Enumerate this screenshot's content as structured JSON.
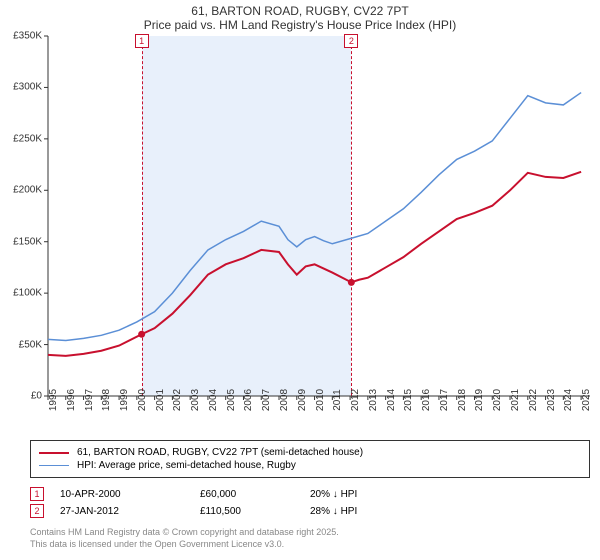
{
  "header": {
    "title": "61, BARTON ROAD, RUGBY, CV22 7PT",
    "subtitle": "Price paid vs. HM Land Registry's House Price Index (HPI)"
  },
  "chart": {
    "type": "line",
    "background_color": "#ffffff",
    "axis_color": "#333333",
    "shaded_color": "#e8f0fb",
    "shaded_range": [
      2000.27,
      2012.07
    ],
    "x_years": [
      1995,
      1996,
      1997,
      1998,
      1999,
      2000,
      2001,
      2002,
      2003,
      2004,
      2005,
      2006,
      2007,
      2008,
      2009,
      2010,
      2011,
      2012,
      2013,
      2014,
      2015,
      2016,
      2017,
      2018,
      2019,
      2020,
      2021,
      2022,
      2023,
      2024,
      2025
    ],
    "xlim": [
      1995,
      2025.5
    ],
    "y_ticks": [
      0,
      50000,
      100000,
      150000,
      200000,
      250000,
      300000,
      350000
    ],
    "y_tick_labels": [
      "£0",
      "£50K",
      "£100K",
      "£150K",
      "£200K",
      "£250K",
      "£300K",
      "£350K"
    ],
    "ylim": [
      0,
      350000
    ],
    "tick_fontsize": 10,
    "series": [
      {
        "name": "property",
        "label": "61, BARTON ROAD, RUGBY, CV22 7PT (semi-detached house)",
        "color": "#c8102e",
        "line_width": 2,
        "points": [
          [
            1995,
            40000
          ],
          [
            1996,
            39000
          ],
          [
            1997,
            41000
          ],
          [
            1998,
            44000
          ],
          [
            1999,
            49000
          ],
          [
            2000.27,
            60000
          ],
          [
            2001,
            66000
          ],
          [
            2002,
            80000
          ],
          [
            2003,
            98000
          ],
          [
            2004,
            118000
          ],
          [
            2005,
            128000
          ],
          [
            2006,
            134000
          ],
          [
            2007,
            142000
          ],
          [
            2008,
            140000
          ],
          [
            2008.5,
            128000
          ],
          [
            2009,
            118000
          ],
          [
            2009.5,
            126000
          ],
          [
            2010,
            128000
          ],
          [
            2010.5,
            124000
          ],
          [
            2011,
            120000
          ],
          [
            2012.07,
            110500
          ],
          [
            2012.5,
            113000
          ],
          [
            2013,
            115000
          ],
          [
            2014,
            125000
          ],
          [
            2015,
            135000
          ],
          [
            2016,
            148000
          ],
          [
            2017,
            160000
          ],
          [
            2018,
            172000
          ],
          [
            2019,
            178000
          ],
          [
            2020,
            185000
          ],
          [
            2021,
            200000
          ],
          [
            2022,
            217000
          ],
          [
            2023,
            213000
          ],
          [
            2024,
            212000
          ],
          [
            2025,
            218000
          ]
        ]
      },
      {
        "name": "hpi",
        "label": "HPI: Average price, semi-detached house, Rugby",
        "color": "#5b8fd6",
        "line_width": 1.5,
        "points": [
          [
            1995,
            55000
          ],
          [
            1996,
            54000
          ],
          [
            1997,
            56000
          ],
          [
            1998,
            59000
          ],
          [
            1999,
            64000
          ],
          [
            2000,
            72000
          ],
          [
            2001,
            82000
          ],
          [
            2002,
            100000
          ],
          [
            2003,
            122000
          ],
          [
            2004,
            142000
          ],
          [
            2005,
            152000
          ],
          [
            2006,
            160000
          ],
          [
            2007,
            170000
          ],
          [
            2008,
            165000
          ],
          [
            2008.5,
            152000
          ],
          [
            2009,
            145000
          ],
          [
            2009.5,
            152000
          ],
          [
            2010,
            155000
          ],
          [
            2010.5,
            151000
          ],
          [
            2011,
            148000
          ],
          [
            2012,
            153000
          ],
          [
            2013,
            158000
          ],
          [
            2014,
            170000
          ],
          [
            2015,
            182000
          ],
          [
            2016,
            198000
          ],
          [
            2017,
            215000
          ],
          [
            2018,
            230000
          ],
          [
            2019,
            238000
          ],
          [
            2020,
            248000
          ],
          [
            2021,
            270000
          ],
          [
            2022,
            292000
          ],
          [
            2023,
            285000
          ],
          [
            2024,
            283000
          ],
          [
            2025,
            295000
          ]
        ]
      }
    ],
    "sale_markers": [
      {
        "n": "1",
        "x": 2000.27,
        "y_pos": "top",
        "color": "#c8102e"
      },
      {
        "n": "2",
        "x": 2012.07,
        "y_pos": "top",
        "color": "#c8102e"
      }
    ],
    "sale_points": [
      {
        "x": 2000.27,
        "y": 60000,
        "color": "#c8102e"
      },
      {
        "x": 2012.07,
        "y": 110500,
        "color": "#c8102e"
      }
    ]
  },
  "legend": {
    "items": [
      {
        "color": "#c8102e",
        "width": 2,
        "label": "61, BARTON ROAD, RUGBY, CV22 7PT (semi-detached house)"
      },
      {
        "color": "#5b8fd6",
        "width": 1.5,
        "label": "HPI: Average price, semi-detached house, Rugby"
      }
    ]
  },
  "sales": [
    {
      "n": "1",
      "color": "#c8102e",
      "date": "10-APR-2000",
      "price": "£60,000",
      "delta": "20% ↓ HPI"
    },
    {
      "n": "2",
      "color": "#c8102e",
      "date": "27-JAN-2012",
      "price": "£110,500",
      "delta": "28% ↓ HPI"
    }
  ],
  "footer": {
    "line1": "Contains HM Land Registry data © Crown copyright and database right 2025.",
    "line2": "This data is licensed under the Open Government Licence v3.0."
  }
}
